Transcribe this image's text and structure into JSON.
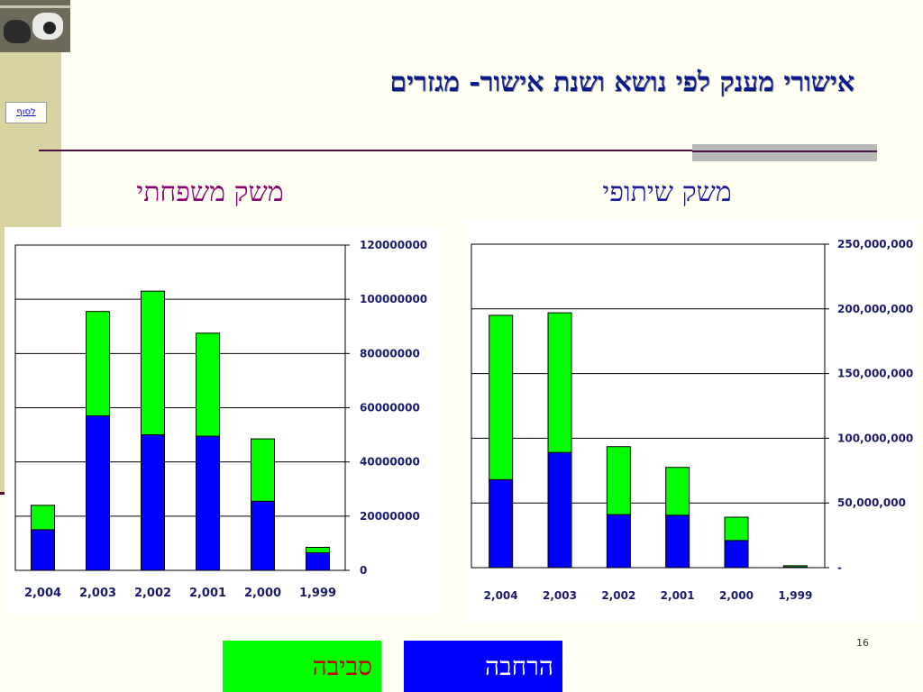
{
  "slide": {
    "title": "אישורי מענק לפי נושא ושנת אישור- מגזרים",
    "link_to_end": "לסוף",
    "subtitle_left": "משק משפחתי",
    "subtitle_right": "משק שיתופי",
    "page_number": "16"
  },
  "legend": {
    "green_label": "סביבה",
    "blue_label": "הרחבה",
    "green_color": "#00ff00",
    "blue_color": "#0000ff"
  },
  "chart_data": [
    {
      "type": "bar",
      "stacked": true,
      "categories": [
        "2,004",
        "2,003",
        "2,002",
        "2,001",
        "2,000",
        "1,999"
      ],
      "series": [
        {
          "name": "הרחבה",
          "color": "#0000ff",
          "values": [
            15000000,
            57000000,
            50000000,
            49500000,
            25500000,
            6500000
          ]
        },
        {
          "name": "סביבה",
          "color": "#00ff00",
          "values": [
            9000000,
            38500000,
            53000000,
            38000000,
            23000000,
            2000000
          ]
        }
      ],
      "ylim": [
        0,
        120000000
      ],
      "yticks": [
        0,
        20000000,
        40000000,
        60000000,
        80000000,
        100000000,
        120000000
      ],
      "ytick_labels": [
        "0",
        "20000000",
        "40000000",
        "60000000",
        "80000000",
        "100000000",
        "120000000"
      ],
      "grid": true,
      "y_axis_side": "right"
    },
    {
      "type": "bar",
      "stacked": true,
      "categories": [
        "2,004",
        "2,003",
        "2,002",
        "2,001",
        "2,000",
        "1,999"
      ],
      "series": [
        {
          "name": "הרחבה",
          "color": "#0000ff",
          "values": [
            68000000,
            89000000,
            41000000,
            40500000,
            21000000,
            500000
          ]
        },
        {
          "name": "סביבה",
          "color": "#00ff00",
          "values": [
            127000000,
            108000000,
            52500000,
            37000000,
            18000000,
            1000000
          ]
        }
      ],
      "ylim": [
        0,
        250000000
      ],
      "yticks": [
        0,
        50000000,
        100000000,
        150000000,
        200000000,
        250000000
      ],
      "ytick_labels": [
        "-",
        "50,000,000",
        "100,000,000",
        "150,000,000",
        "200,000,000",
        "250,000,000"
      ],
      "grid": true,
      "y_axis_side": "right"
    }
  ]
}
